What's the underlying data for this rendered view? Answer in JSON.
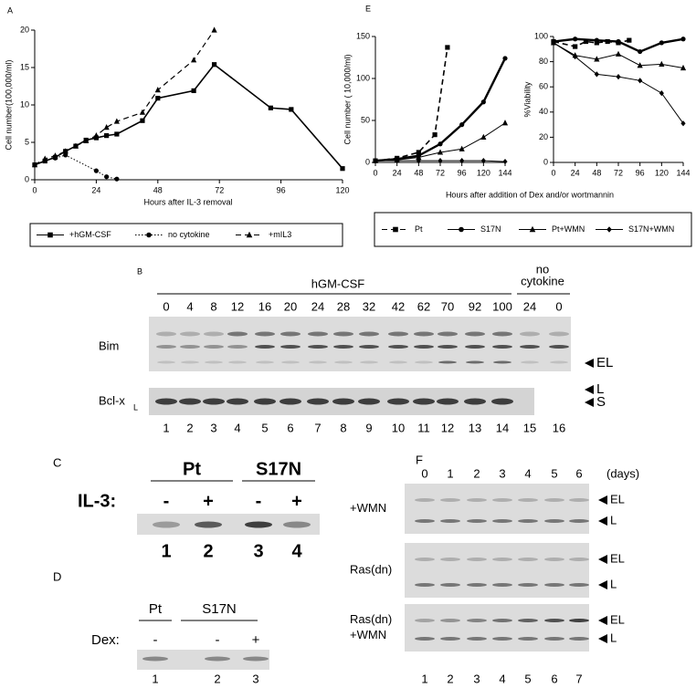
{
  "chart_data": [
    {
      "type": "line",
      "panel": "A",
      "xlabel": "Hours after IL-3 removal",
      "ylabel": "Cell number(100,000/ml)",
      "xlim": [
        0,
        120
      ],
      "xticks": [
        0,
        24,
        48,
        72,
        96,
        120
      ],
      "ylim": [
        0,
        20
      ],
      "yticks": [
        0,
        5,
        10,
        15,
        20
      ],
      "series": [
        {
          "name": "+hGM-CSF",
          "color": "#000000",
          "marker": "square",
          "line_style": "solid",
          "line_width": 1.6,
          "x": [
            0,
            4,
            8,
            12,
            16,
            20,
            24,
            28,
            32,
            42,
            48,
            62,
            70,
            92,
            100,
            120
          ],
          "values": [
            2,
            2.5,
            3,
            3.8,
            4.5,
            5.3,
            5.6,
            5.9,
            6.1,
            7.9,
            10.9,
            11.9,
            15.4,
            9.6,
            9.4,
            1.5
          ]
        },
        {
          "name": "no cytokine",
          "color": "#000000",
          "marker": "circle",
          "line_style": "dotted",
          "line_width": 1,
          "x": [
            0,
            4,
            8,
            12,
            24,
            28,
            32
          ],
          "values": [
            2,
            2.6,
            2.9,
            3.3,
            1.2,
            0.4,
            0.1
          ]
        },
        {
          "name": "+mIL3",
          "color": "#000000",
          "marker": "triangle",
          "line_style": "dashed",
          "line_width": 1.2,
          "x": [
            0,
            4,
            8,
            12,
            16,
            20,
            24,
            28,
            32,
            42,
            48,
            62,
            70
          ],
          "values": [
            2,
            2.8,
            3.2,
            3.8,
            4.5,
            5.2,
            5.9,
            7,
            7.8,
            9,
            12,
            16,
            20
          ]
        }
      ]
    },
    {
      "type": "line",
      "panel": "E",
      "xlabel": "Hours after addition of Dex and/or wortmannin",
      "ylabel": "Cell number (  10,000/ml)",
      "xlim": [
        0,
        144
      ],
      "xticks": [
        0,
        24,
        48,
        72,
        96,
        120,
        144
      ],
      "ylim": [
        0,
        150
      ],
      "yticks": [
        0,
        50,
        100,
        150
      ],
      "series": [
        {
          "name": "Pt",
          "color": "#000000",
          "marker": "square",
          "line_style": "dashed",
          "line_width": 1.6,
          "x": [
            0,
            24,
            48,
            66,
            80
          ],
          "values": [
            2,
            5,
            12,
            33,
            137
          ]
        },
        {
          "name": "S17N",
          "color": "#000000",
          "marker": "circle",
          "line_style": "solid",
          "line_width": 2.4,
          "x": [
            0,
            24,
            48,
            72,
            96,
            120,
            144
          ],
          "values": [
            2,
            4,
            8,
            22,
            45,
            72,
            124
          ]
        },
        {
          "name": "Pt+WMN",
          "color": "#000000",
          "marker": "triangle",
          "line_style": "solid",
          "line_width": 1,
          "x": [
            0,
            24,
            48,
            72,
            96,
            120,
            144
          ],
          "values": [
            2,
            3,
            6,
            12,
            16,
            30,
            47
          ]
        },
        {
          "name": "S17N+WMN",
          "color": "#000000",
          "marker": "diamond",
          "line_style": "solid",
          "line_width": 1,
          "x": [
            0,
            24,
            48,
            72,
            96,
            120,
            144
          ],
          "values": [
            2,
            2,
            2,
            2,
            2,
            2,
            1
          ]
        }
      ]
    },
    {
      "type": "line",
      "ylabel": "%Viability",
      "xlim": [
        0,
        144
      ],
      "xticks": [
        0,
        24,
        48,
        72,
        96,
        120,
        144
      ],
      "ylim": [
        0,
        100
      ],
      "yticks": [
        0,
        20,
        40,
        60,
        80,
        100
      ],
      "series": [
        {
          "color": "#000000",
          "marker": "square",
          "line_style": "dashed",
          "line_width": 1.6,
          "x": [
            0,
            24,
            36,
            48,
            60,
            72,
            84
          ],
          "values": [
            96,
            92,
            96,
            95,
            96,
            95,
            97
          ]
        },
        {
          "color": "#000000",
          "marker": "circle",
          "line_style": "solid",
          "line_width": 2.4,
          "x": [
            0,
            24,
            48,
            72,
            96,
            120,
            144
          ],
          "values": [
            96,
            98,
            97,
            96,
            88,
            95,
            98
          ]
        },
        {
          "color": "#000000",
          "marker": "triangle",
          "line_style": "solid",
          "line_width": 1,
          "x": [
            0,
            24,
            48,
            72,
            96,
            120,
            144
          ],
          "values": [
            95,
            85,
            82,
            86,
            77,
            78,
            75
          ]
        },
        {
          "color": "#000000",
          "marker": "diamond",
          "line_style": "solid",
          "line_width": 1,
          "x": [
            0,
            24,
            48,
            72,
            96,
            120,
            144
          ],
          "values": [
            95,
            84,
            70,
            68,
            65,
            55,
            31
          ]
        }
      ]
    }
  ],
  "blots": {
    "B": {
      "label": "B",
      "header": "hGM-CSF",
      "time_labels": [
        "0",
        "4",
        "8",
        "12",
        "16",
        "20",
        "24",
        "28",
        "32",
        "42",
        "62",
        "70",
        "92",
        "100"
      ],
      "control_header": [
        "no",
        "cytokine"
      ],
      "control_labels": [
        "24",
        "0"
      ],
      "rows": [
        "Bim",
        "Bcl-x"
      ],
      "row_subscript": "L",
      "band_labels": [
        "EL",
        "L",
        "S"
      ],
      "lane_numbers": [
        "1",
        "2",
        "3",
        "4",
        "5",
        "6",
        "7",
        "8",
        "9",
        "10",
        "11",
        "12",
        "13",
        "14",
        "15",
        "16"
      ]
    },
    "C": {
      "label": "C",
      "groups": [
        "Pt",
        "S17N"
      ],
      "treatment": "IL-3:",
      "signs": [
        "-",
        "+",
        "-",
        "+"
      ],
      "lane_numbers": [
        "1",
        "2",
        "3",
        "4"
      ]
    },
    "D": {
      "label": "D",
      "groups": [
        "Pt",
        "S17N"
      ],
      "treatment": "Dex:",
      "signs": [
        "-",
        "-",
        "+"
      ],
      "lane_numbers": [
        "1",
        "2",
        "3"
      ]
    },
    "F": {
      "label": "F",
      "days": [
        "0",
        "1",
        "2",
        "3",
        "4",
        "5",
        "6"
      ],
      "unit": "(days)",
      "rows": [
        [
          "+WMN"
        ],
        [
          "Ras(dn)"
        ],
        [
          "Ras(dn)",
          "+WMN"
        ]
      ],
      "band_labels": [
        "EL",
        "L"
      ],
      "lane_numbers": [
        "1",
        "2",
        "3",
        "4",
        "5",
        "6",
        "7"
      ]
    }
  }
}
